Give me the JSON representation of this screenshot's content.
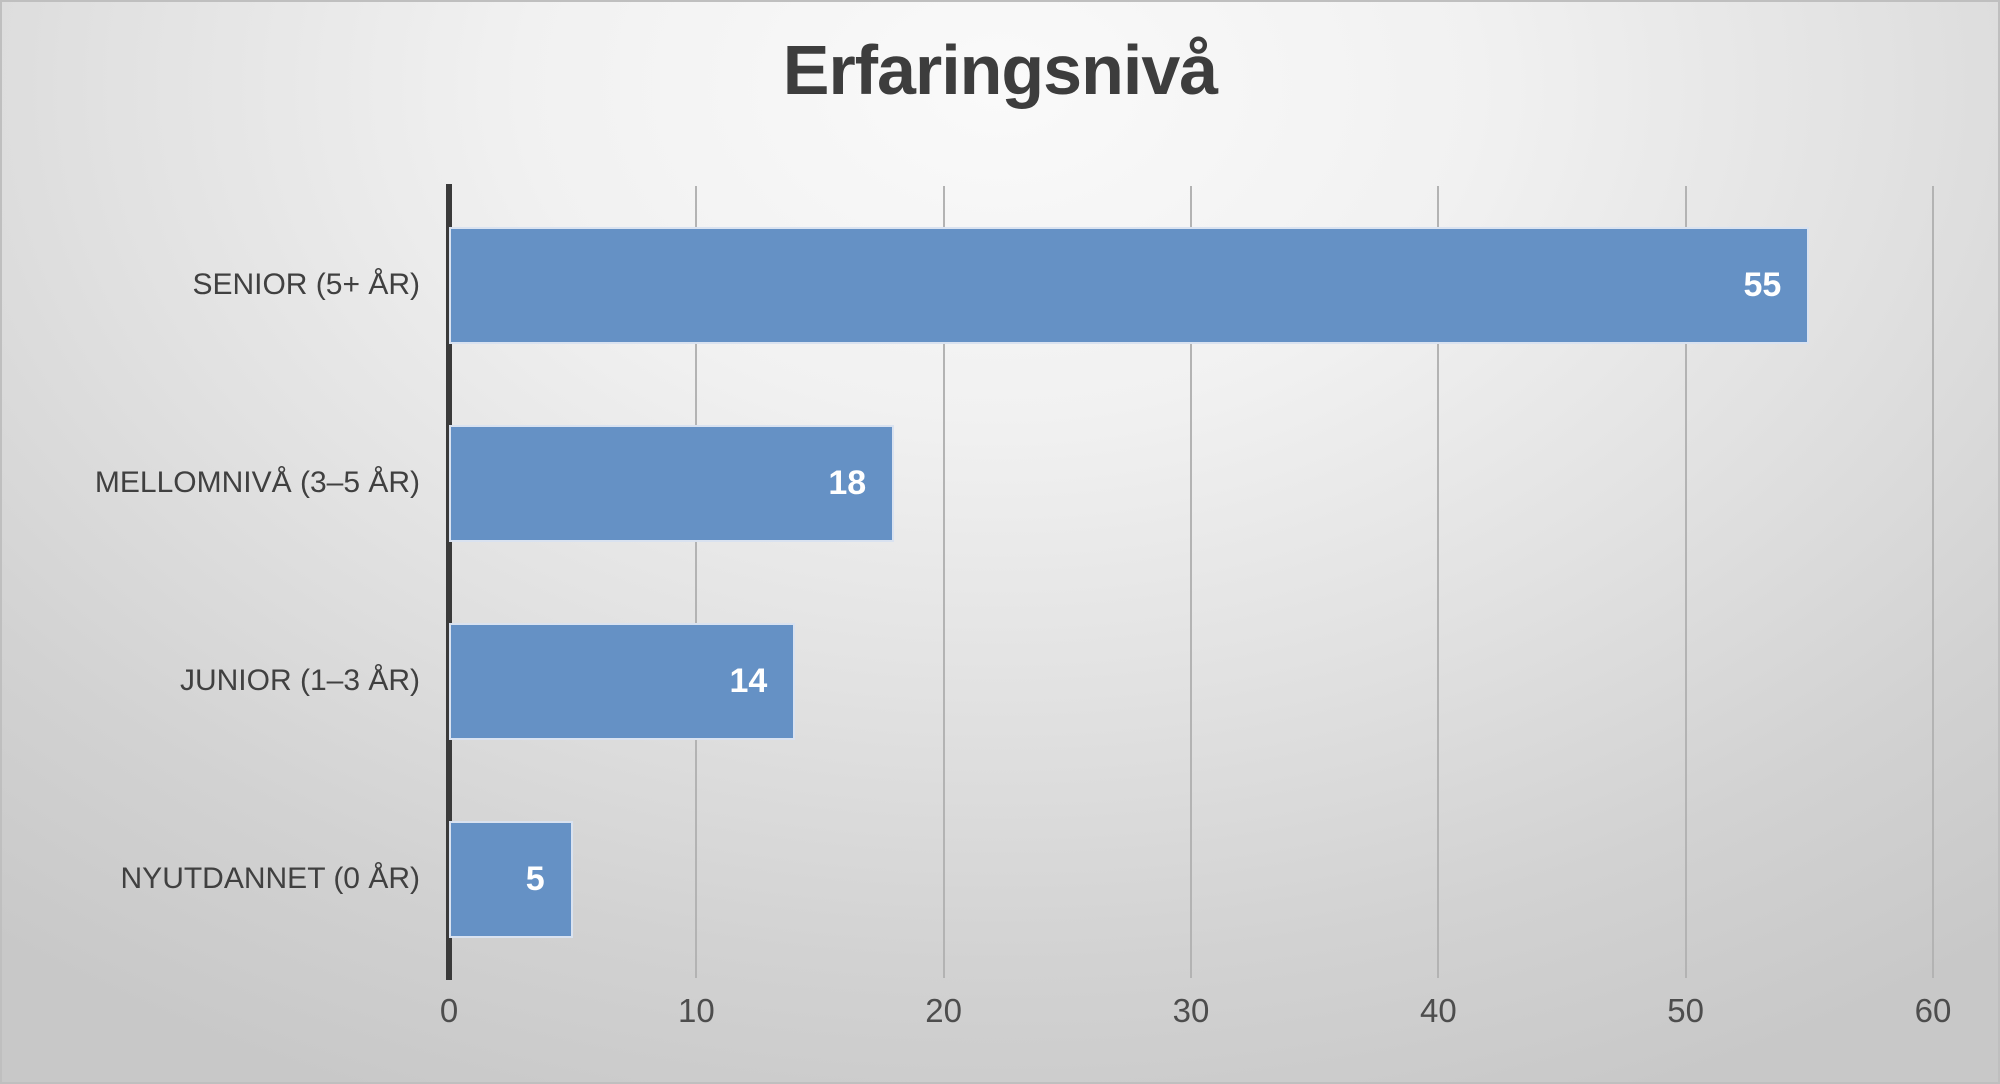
{
  "chart_data": {
    "type": "bar",
    "orientation": "horizontal",
    "title": "Erfaringsnivå",
    "categories": [
      "SENIOR (5+ ÅR)",
      "MELLOMNIVÅ (3–5 ÅR)",
      "JUNIOR (1–3 ÅR)",
      "NYUTDANNET (0 ÅR)"
    ],
    "values": [
      55,
      18,
      14,
      5
    ],
    "data_labels": [
      "55",
      "18",
      "14",
      "5"
    ],
    "xlabel": "",
    "ylabel": "",
    "xlim": [
      0,
      60
    ],
    "x_ticks": [
      0,
      10,
      20,
      30,
      40,
      50,
      60
    ],
    "grid": "vertical-gridlines",
    "legend": "none",
    "colors": {
      "bar_fill": "#6591c5",
      "bar_border": "#d9e2f0",
      "axis_line": "#3a3a3a",
      "gridline": "#b3b3b3",
      "title_text": "#3d3d3d",
      "category_text": "#404040",
      "tick_text": "#4d4d4d",
      "value_label_text": "#ffffff"
    }
  }
}
